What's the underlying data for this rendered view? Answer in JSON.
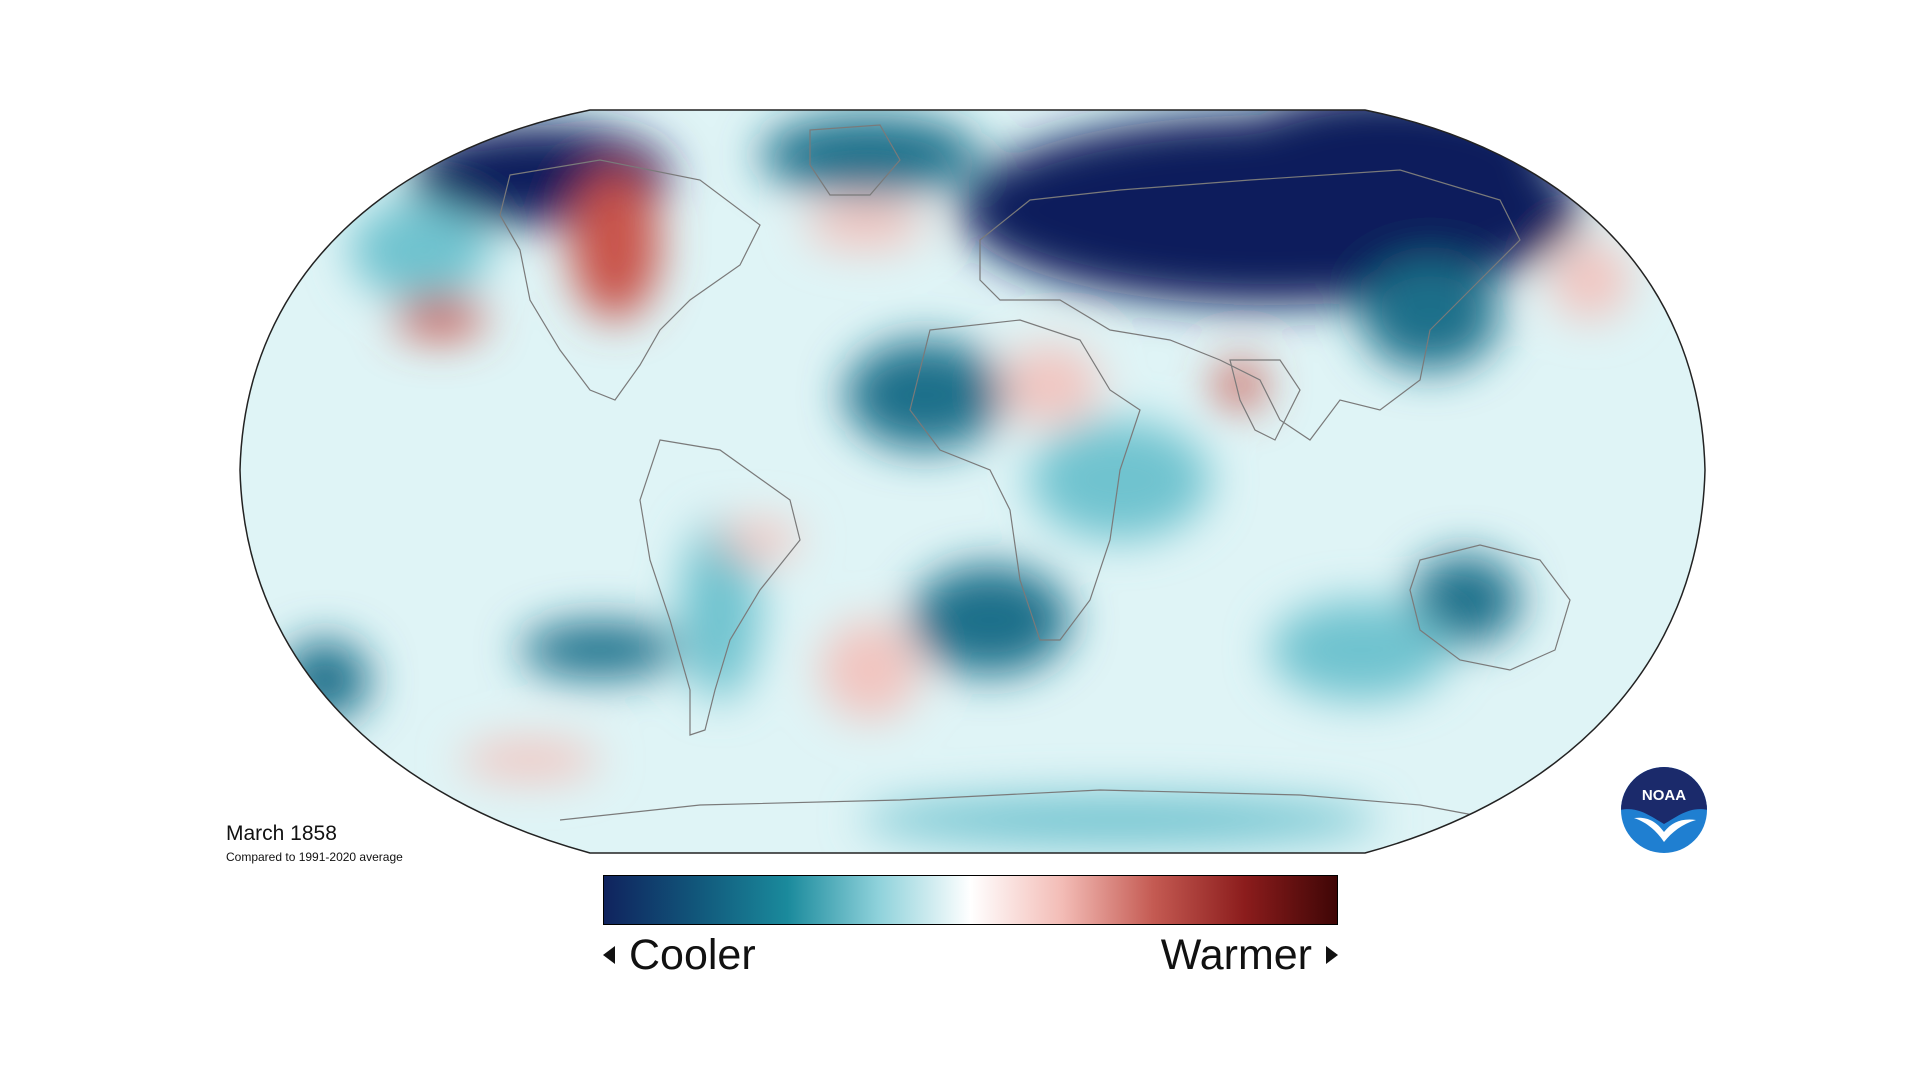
{
  "map": {
    "projection": "Robinson",
    "variable": "temperature anomaly",
    "colors": {
      "very_cold": "#0d1f5c",
      "cold": "#1a6f8a",
      "cool": "#6fc3cf",
      "slightly_cool": "#c9ecef",
      "neutral": "#ffffff",
      "slightly_warm": "#f2c5c0",
      "warm": "#c9524a",
      "very_warm": "#5a0a0a"
    }
  },
  "caption": {
    "title": "March 1858",
    "subtitle": "Compared to 1991-2020 average"
  },
  "legend": {
    "left_label": "Cooler",
    "right_label": "Warmer",
    "gradient": [
      "#10235e",
      "#11567a",
      "#1a8a9c",
      "#8fd2db",
      "#ffffff",
      "#f3bcb6",
      "#c45a52",
      "#8b1c1c",
      "#3f0606"
    ]
  },
  "logo": {
    "text": "NOAA",
    "colors": {
      "top": "#1b2a6b",
      "bottom": "#1f7fd1",
      "bird": "#ffffff"
    }
  }
}
